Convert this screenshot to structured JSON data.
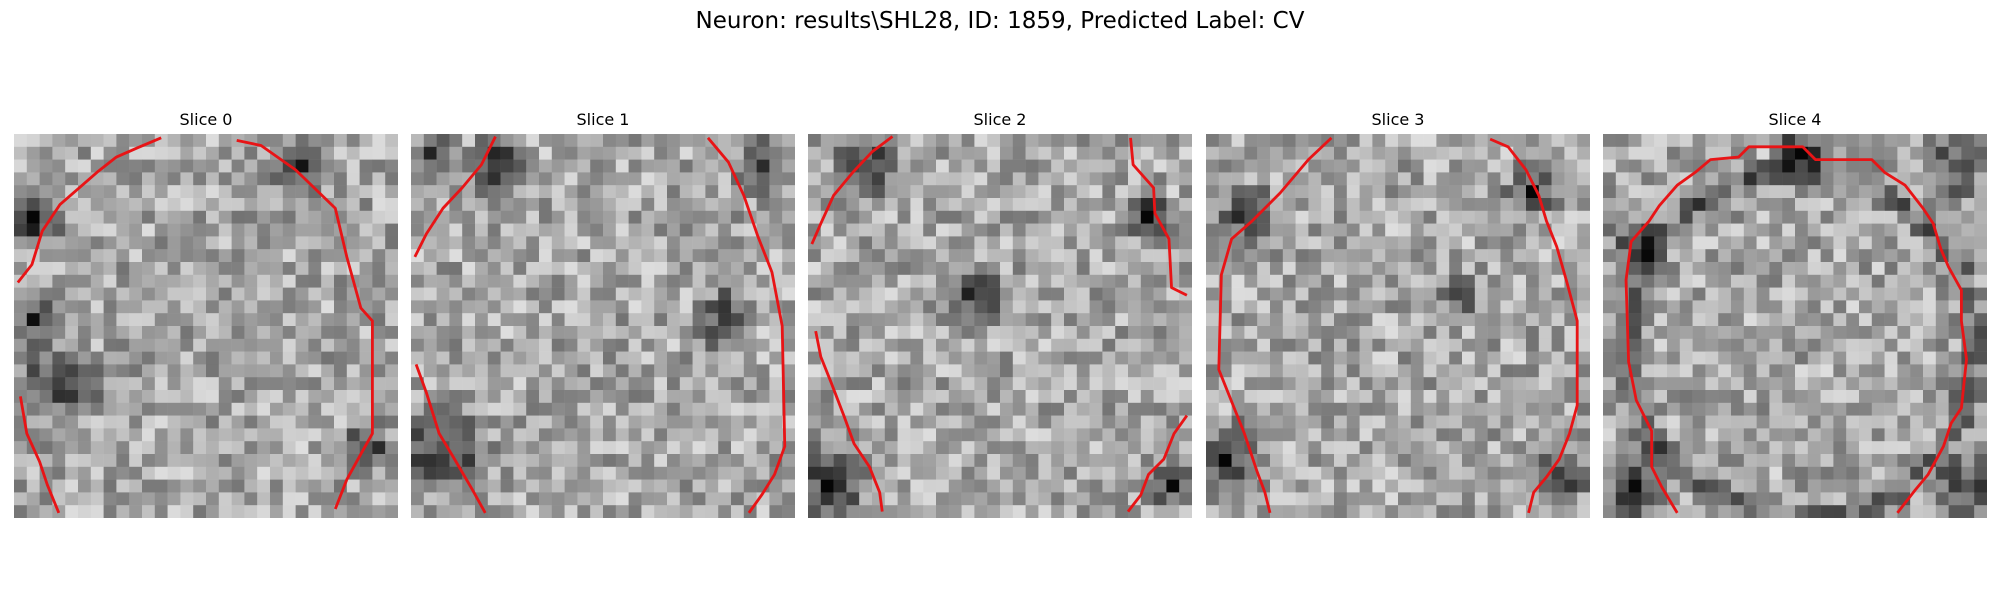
{
  "figure": {
    "title": "Neuron: results\\SHL28, ID: 1859, Predicted Label: CV"
  },
  "panels": [
    {
      "title": "Slice 0"
    },
    {
      "title": "Slice 1"
    },
    {
      "title": "Slice 2"
    },
    {
      "title": "Slice 3"
    },
    {
      "title": "Slice 4"
    }
  ],
  "colors": {
    "contour": "#e81416",
    "background": "#ffffff"
  }
}
